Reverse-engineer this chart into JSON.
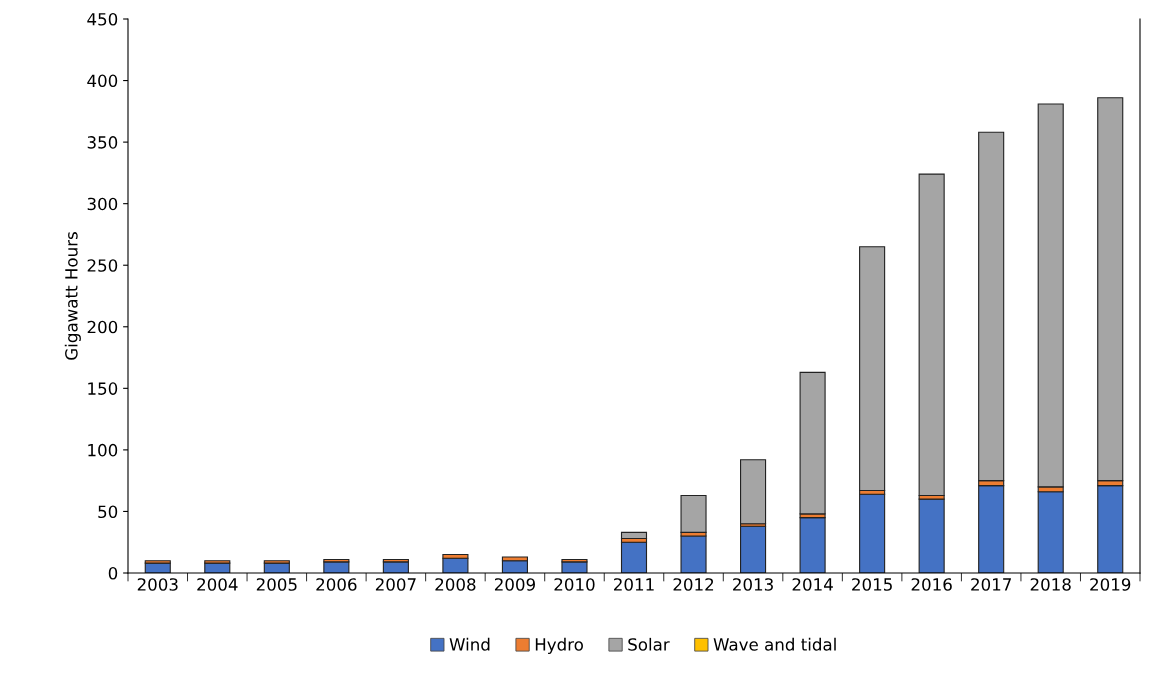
{
  "chart_data": {
    "type": "bar",
    "stacked": true,
    "ylabel": "Gigawatt Hours",
    "categories": [
      "2003",
      "2004",
      "2005",
      "2006",
      "2007",
      "2008",
      "2009",
      "2010",
      "2011",
      "2012",
      "2013",
      "2014",
      "2015",
      "2016",
      "2017",
      "2018",
      "2019"
    ],
    "series": [
      {
        "name": "Wind",
        "color": "#4472c4",
        "values": [
          8,
          8,
          8,
          9,
          9,
          12,
          10,
          9,
          25,
          30,
          38,
          45,
          64,
          60,
          71,
          66,
          71
        ]
      },
      {
        "name": "Hydro",
        "color": "#ed7d31",
        "values": [
          2,
          2,
          2,
          2,
          2,
          3,
          3,
          2,
          3,
          3,
          2,
          3,
          3,
          3,
          4,
          4,
          4
        ]
      },
      {
        "name": "Solar",
        "color": "#a5a5a5",
        "values": [
          0,
          0,
          0,
          0,
          0,
          0,
          0,
          0,
          5,
          30,
          52,
          115,
          198,
          261,
          283,
          311,
          311
        ]
      },
      {
        "name": "Wave and tidal",
        "color": "#ffc000",
        "values": [
          0,
          0,
          0,
          0,
          0,
          0,
          0,
          0,
          0,
          0,
          0,
          0,
          0,
          0,
          0,
          0,
          0
        ]
      }
    ],
    "ylim": [
      0,
      450
    ],
    "yticks": [
      0,
      50,
      100,
      150,
      200,
      250,
      300,
      350,
      400,
      450
    ],
    "grid": false,
    "legend": "bottom"
  }
}
